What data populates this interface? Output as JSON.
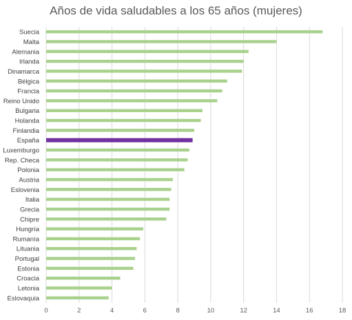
{
  "chart_data": {
    "type": "bar",
    "orientation": "horizontal",
    "title": "Años de vida saludables a los 65 años (mujeres)",
    "xlabel": "",
    "ylabel": "",
    "xlim": [
      0,
      18
    ],
    "xticks": [
      0,
      2,
      4,
      6,
      8,
      10,
      12,
      14,
      16,
      18
    ],
    "grid": "vertical",
    "legend": "none",
    "colors": {
      "default": "#a9d18e",
      "highlight": "#7030a0"
    },
    "highlight": "España",
    "categories": [
      "Suecia",
      "Malta",
      "Alemania",
      "Irlanda",
      "Dinamarca",
      "Bélgica",
      "Francia",
      "Reino Unido",
      "Bulgaria",
      "Holanda",
      "Finlandia",
      "España",
      "Luxemburgo",
      "Rep. Checa",
      "Polonia",
      "Austria",
      "Eslovenia",
      "Italia",
      "Grecia",
      "Chipre",
      "Hungría",
      "Rumanía",
      "Lituania",
      "Portugal",
      "Estonia",
      "Croacia",
      "Letonia",
      "Eslovaquia"
    ],
    "values": [
      16.8,
      14.0,
      12.3,
      12.0,
      11.9,
      11.0,
      10.7,
      10.4,
      9.5,
      9.4,
      9.0,
      8.9,
      8.7,
      8.6,
      8.4,
      7.7,
      7.6,
      7.5,
      7.5,
      7.3,
      5.9,
      5.7,
      5.5,
      5.4,
      5.3,
      4.5,
      4.0,
      3.8
    ]
  }
}
